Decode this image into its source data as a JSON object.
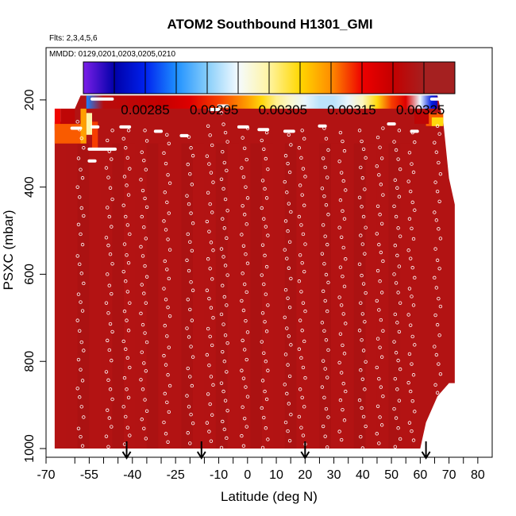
{
  "chart_data": {
    "type": "heatmap",
    "title": "ATOM2 Southbound H1301_GMI",
    "flights_note": "Flts: 2,3,4,5,6",
    "dates_note": "MMDD: 0129,0201,0203,0205,0210",
    "xlabel": "Latitude (deg N)",
    "ylabel": "PSXC (mbar)",
    "xlim": [
      -70,
      85
    ],
    "ylim": [
      1020,
      80
    ],
    "x_ticks": [
      -70,
      -55,
      -40,
      -25,
      -10,
      0,
      10,
      20,
      30,
      40,
      50,
      60,
      70,
      80
    ],
    "x_ticks_mid": [
      -60,
      -50,
      -45,
      -35,
      -30,
      -20,
      -15,
      -5,
      5,
      15,
      25,
      35,
      45,
      55,
      65,
      75
    ],
    "y_ticks": [
      200,
      400,
      600,
      800,
      1000
    ],
    "colorbar": {
      "ticks": [
        0.00285,
        0.00295,
        0.00305,
        0.00315,
        0.00325
      ],
      "tick_labels": [
        "0.00285",
        "0.00295",
        "0.00305",
        "0.00315",
        "0.00325"
      ],
      "min": 0.00276,
      "max": 0.0033,
      "colors": [
        "#7b1fe8",
        "#0000a8",
        "#0022ee",
        "#1e90ff",
        "#87cefa",
        "#f5fbff",
        "#fff4a0",
        "#ffd700",
        "#ff8c00",
        "#ee0000",
        "#c40000",
        "#a52020"
      ]
    },
    "data_extent": {
      "lat_min": -67,
      "lat_max": 72,
      "top_pressure_by_lat": [
        [
          -67,
          250
        ],
        [
          -62,
          250
        ],
        [
          -58,
          190
        ],
        [
          -35,
          190
        ],
        [
          -10,
          190
        ],
        [
          10,
          190
        ],
        [
          30,
          190
        ],
        [
          50,
          190
        ],
        [
          66,
          190
        ],
        [
          68,
          250
        ],
        [
          70,
          380
        ],
        [
          72,
          440
        ]
      ],
      "bottom_pressure_by_lat": [
        [
          -67,
          1000
        ],
        [
          60,
          1000
        ],
        [
          62,
          940
        ],
        [
          66,
          880
        ],
        [
          70,
          850
        ],
        [
          72,
          850
        ]
      ]
    },
    "background_value": 0.00328,
    "upper_band": {
      "pressure_top": 190,
      "pressure_bottom": 220,
      "lat": [
        -56,
        -50,
        -40,
        -30,
        -20,
        -10,
        0,
        5,
        10,
        15,
        20,
        25,
        30,
        35,
        40,
        45,
        50,
        55,
        60,
        64,
        66
      ],
      "values": [
        0.0029,
        0.00327,
        0.00326,
        0.00325,
        0.00322,
        0.00318,
        0.00314,
        0.0031,
        0.00306,
        0.00303,
        0.003,
        0.00298,
        0.00298,
        0.003,
        0.00304,
        0.0031,
        0.00318,
        0.00322,
        0.003,
        0.00285,
        0.0028
      ]
    },
    "left_patches": [
      {
        "lat": [
          -67,
          -65
        ],
        "pressure": [
          220,
          270
        ],
        "value": 0.0032
      },
      {
        "lat": [
          -65,
          -60
        ],
        "pressure": [
          220,
          270
        ],
        "value": 0.00326
      },
      {
        "lat": [
          -67,
          -58
        ],
        "pressure": [
          255,
          300
        ],
        "value": 0.00317
      },
      {
        "lat": [
          -58,
          -56
        ],
        "pressure": [
          220,
          300
        ],
        "value": 0.00314
      },
      {
        "lat": [
          -56,
          -54
        ],
        "pressure": [
          230,
          280
        ],
        "value": 0.00305
      },
      {
        "lat": [
          -54,
          -52
        ],
        "pressure": [
          250,
          310
        ],
        "value": 0.00318
      }
    ],
    "right_patches": [
      {
        "lat": [
          62,
          68
        ],
        "pressure": [
          230,
          260
        ],
        "value": 0.00317
      },
      {
        "lat": [
          64,
          68
        ],
        "pressure": [
          240,
          260
        ],
        "value": 0.0031
      },
      {
        "lat": [
          58,
          63
        ],
        "pressure": [
          225,
          255
        ],
        "value": 0.00326
      }
    ],
    "flight_tracks": [
      {
        "lat": -58,
        "p_top": 250,
        "p_bottom": 1000
      },
      {
        "lat": -48,
        "p_top": 270,
        "p_bottom": 1000
      },
      {
        "lat": -42,
        "p_top": 270,
        "p_bottom": 1000
      },
      {
        "lat": -36,
        "p_top": 270,
        "p_bottom": 1000
      },
      {
        "lat": -28,
        "p_top": 280,
        "p_bottom": 1000
      },
      {
        "lat": -20,
        "p_top": 285,
        "p_bottom": 1000
      },
      {
        "lat": -13,
        "p_top": 260,
        "p_bottom": 1000
      },
      {
        "lat": -8,
        "p_top": 230,
        "p_bottom": 1000
      },
      {
        "lat": -1,
        "p_top": 265,
        "p_bottom": 1000
      },
      {
        "lat": 6,
        "p_top": 275,
        "p_bottom": 1000
      },
      {
        "lat": 14,
        "p_top": 280,
        "p_bottom": 1000
      },
      {
        "lat": 19,
        "p_top": 270,
        "p_bottom": 1000
      },
      {
        "lat": 27,
        "p_top": 265,
        "p_bottom": 1000
      },
      {
        "lat": 33,
        "p_top": 275,
        "p_bottom": 1000
      },
      {
        "lat": 40,
        "p_top": 270,
        "p_bottom": 1000
      },
      {
        "lat": 46,
        "p_top": 265,
        "p_bottom": 1000
      },
      {
        "lat": 52,
        "p_top": 270,
        "p_bottom": 1000
      },
      {
        "lat": 57,
        "p_top": 275,
        "p_bottom": 1000
      },
      {
        "lat": 66,
        "p_top": 260,
        "p_bottom": 880
      }
    ],
    "top_segments": [
      {
        "lat": [
          -54,
          -47
        ],
        "pressure": 198
      },
      {
        "lat": [
          64,
          70
        ],
        "pressure": 198
      },
      {
        "lat": [
          -13,
          -10
        ],
        "pressure": 222
      },
      {
        "lat": [
          -10,
          -7
        ],
        "pressure": 214
      },
      {
        "lat": [
          -61,
          -58
        ],
        "pressure": 265
      },
      {
        "lat": [
          -54,
          -52
        ],
        "pressure": 262
      },
      {
        "lat": [
          -44,
          -41
        ],
        "pressure": 262
      },
      {
        "lat": [
          -32,
          -30
        ],
        "pressure": 272
      },
      {
        "lat": [
          -23,
          -21
        ],
        "pressure": 282
      },
      {
        "lat": [
          -3,
          0
        ],
        "pressure": 262
      },
      {
        "lat": [
          4,
          7
        ],
        "pressure": 268
      },
      {
        "lat": [
          13,
          16
        ],
        "pressure": 272
      },
      {
        "lat": [
          25,
          27
        ],
        "pressure": 260
      },
      {
        "lat": [
          49,
          51
        ],
        "pressure": 255
      },
      {
        "lat": [
          57,
          59
        ],
        "pressure": 272
      },
      {
        "lat": [
          -55,
          -46
        ],
        "pressure": 313
      },
      {
        "lat": [
          -55,
          -53
        ],
        "pressure": 340
      }
    ],
    "arrows_lat": [
      -42,
      -16,
      20,
      62
    ]
  }
}
